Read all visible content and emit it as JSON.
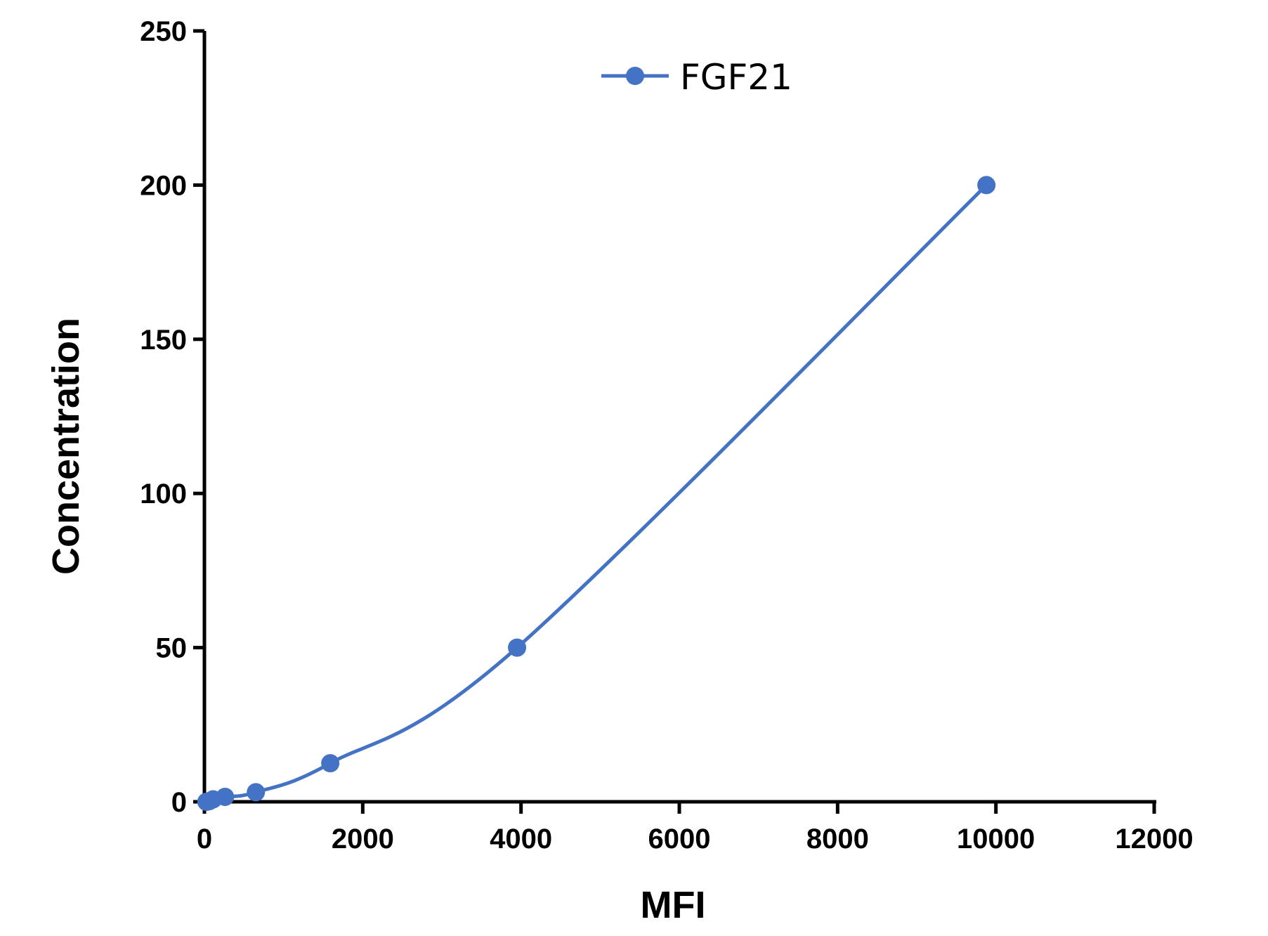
{
  "chart_data": {
    "type": "line",
    "title": "",
    "xlabel": "MFI",
    "ylabel": "Concentration",
    "xlim": [
      0,
      12000
    ],
    "ylim": [
      0,
      250
    ],
    "x_ticks": [
      "0",
      "2000",
      "4000",
      "6000",
      "8000",
      "10000",
      "12000"
    ],
    "y_ticks": [
      "0",
      "50",
      "100",
      "150",
      "200",
      "250"
    ],
    "legend_position": "top-center",
    "grid": false,
    "series": [
      {
        "name": "FGF21",
        "color": "#4472C4",
        "marker": "circle",
        "smooth": true,
        "x": [
          25,
          60,
          110,
          260,
          650,
          1590,
          3950,
          9880
        ],
        "y": [
          0,
          0.2,
          0.8,
          1.6,
          3.1,
          12.5,
          50,
          200
        ]
      }
    ]
  }
}
